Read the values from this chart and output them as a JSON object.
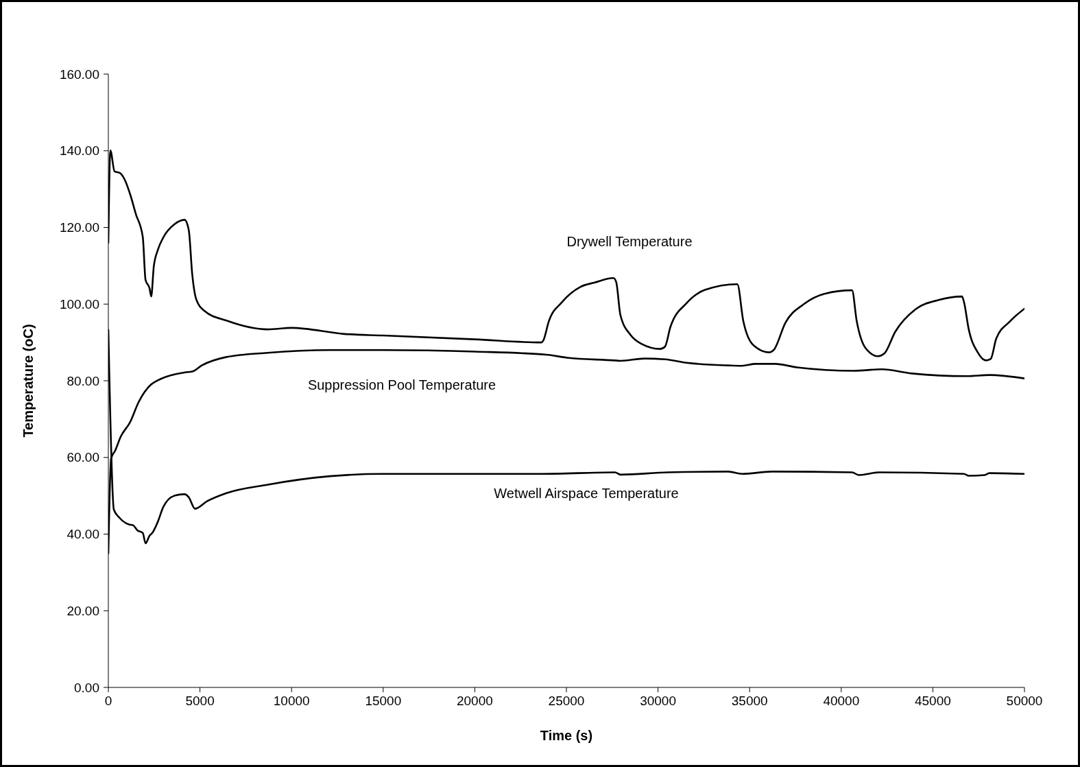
{
  "chart_data": {
    "type": "line",
    "xlabel": "Time (s)",
    "ylabel": "Temperature (oC)",
    "xlim": [
      0,
      50000
    ],
    "xticks": [
      0,
      5000,
      10000,
      15000,
      20000,
      25000,
      30000,
      35000,
      40000,
      45000,
      50000
    ],
    "ylim": [
      0,
      160
    ],
    "yticks": [
      {
        "value": 0,
        "label": "0.00"
      },
      {
        "value": 20,
        "label": "20.00"
      },
      {
        "value": 40,
        "label": "40.00"
      },
      {
        "value": 60,
        "label": "60.00"
      },
      {
        "value": 80,
        "label": "80.00"
      },
      {
        "value": 100,
        "label": "100.00"
      },
      {
        "value": 120,
        "label": "120.00"
      },
      {
        "value": 140,
        "label": "140.00"
      },
      {
        "value": 160,
        "label": "160.00"
      }
    ],
    "grid": false,
    "legend": false,
    "marker": "none",
    "line_style": "solid",
    "series": [
      {
        "color": "#000000",
        "x": [
          0,
          110,
          340,
          630,
          900,
          1200,
          1500,
          1880,
          2030,
          2250,
          2340,
          2480,
          2700,
          3000,
          3600,
          4160,
          4390,
          4580,
          4800,
          5250,
          6450,
          8700,
          10000,
          12900,
          15000,
          20000,
          23630,
          23740,
          24040,
          24760,
          25770,
          26520,
          27570,
          27720,
          27950,
          28510,
          29110,
          30120,
          30380,
          30680,
          31550,
          32560,
          34330,
          34650,
          35220,
          36080,
          36330,
          36950,
          37960,
          39090,
          40590,
          40840,
          41330,
          42010,
          42350,
          42950,
          44070,
          45350,
          46590,
          46700,
          46960,
          47450,
          47900,
          48160,
          48460,
          49210,
          50000
        ],
        "values": [
          116,
          140.1,
          134.6,
          134.2,
          132.4,
          128.5,
          123.5,
          117.5,
          106.3,
          104.1,
          102,
          109.8,
          114.1,
          117.4,
          120.8,
          122,
          119.3,
          107.7,
          101.2,
          98.2,
          95.7,
          93.4,
          93.8,
          92.2,
          91.8,
          90.8,
          90,
          90.5,
          95.5,
          100.5,
          104.5,
          105.6,
          106.8,
          105.7,
          97.1,
          91.9,
          89.6,
          88.3,
          88.9,
          94.1,
          100.2,
          103.7,
          105.2,
          95.7,
          89.2,
          87.4,
          88.1,
          95.1,
          100,
          102.7,
          103.6,
          95.7,
          88.5,
          86.4,
          87.1,
          92.8,
          98.7,
          101.1,
          102,
          100.5,
          93.4,
          87.4,
          85.3,
          85.7,
          91,
          95.5,
          98.8
        ]
      },
      {
        "color": "#000000",
        "x": [
          0,
          150,
          375,
          675,
          1200,
          1650,
          2330,
          2700,
          4200,
          4580,
          5100,
          6450,
          8700,
          12080,
          15000,
          20000,
          23900,
          25060,
          27650,
          27950,
          29260,
          30380,
          31550,
          33830,
          34580,
          35330,
          36380,
          37580,
          40700,
          42200,
          43850,
          46850,
          48090,
          50000
        ],
        "values": [
          35,
          59.7,
          61.8,
          65.4,
          69.3,
          74.4,
          79,
          80.1,
          82.2,
          82.4,
          84,
          86.2,
          87.3,
          88,
          88,
          87.6,
          86.8,
          86,
          85.3,
          85.2,
          85.8,
          85.6,
          84.7,
          84,
          83.9,
          84.4,
          84.4,
          83.5,
          82.6,
          83,
          81.9,
          81.2,
          81.5,
          80.6
        ]
      },
      {
        "color": "#000000",
        "x": [
          0,
          300,
          600,
          1130,
          1350,
          1580,
          1880,
          2030,
          2250,
          2400,
          2700,
          3000,
          3600,
          4160,
          4390,
          4730,
          5400,
          6450,
          8700,
          12080,
          14970,
          23630,
          27650,
          27950,
          30530,
          33830,
          34580,
          36200,
          40590,
          40960,
          42090,
          46700,
          46960,
          47820,
          48090,
          50000
        ],
        "values": [
          93.3,
          46.4,
          44.3,
          42.5,
          42.3,
          41,
          40.3,
          37.6,
          39.6,
          40.3,
          43.2,
          47.1,
          50,
          50.4,
          49.6,
          46.6,
          48.6,
          50.7,
          52.9,
          55.1,
          55.7,
          55.7,
          56.1,
          55.5,
          56.1,
          56.3,
          55.7,
          56.3,
          56.1,
          55.4,
          56.1,
          55.7,
          55.2,
          55.4,
          55.9,
          55.7
        ]
      }
    ],
    "annotations": [
      "Drywell Temperature",
      "Suppression Pool Temperature",
      "Wetwell Airspace Temperature"
    ]
  }
}
